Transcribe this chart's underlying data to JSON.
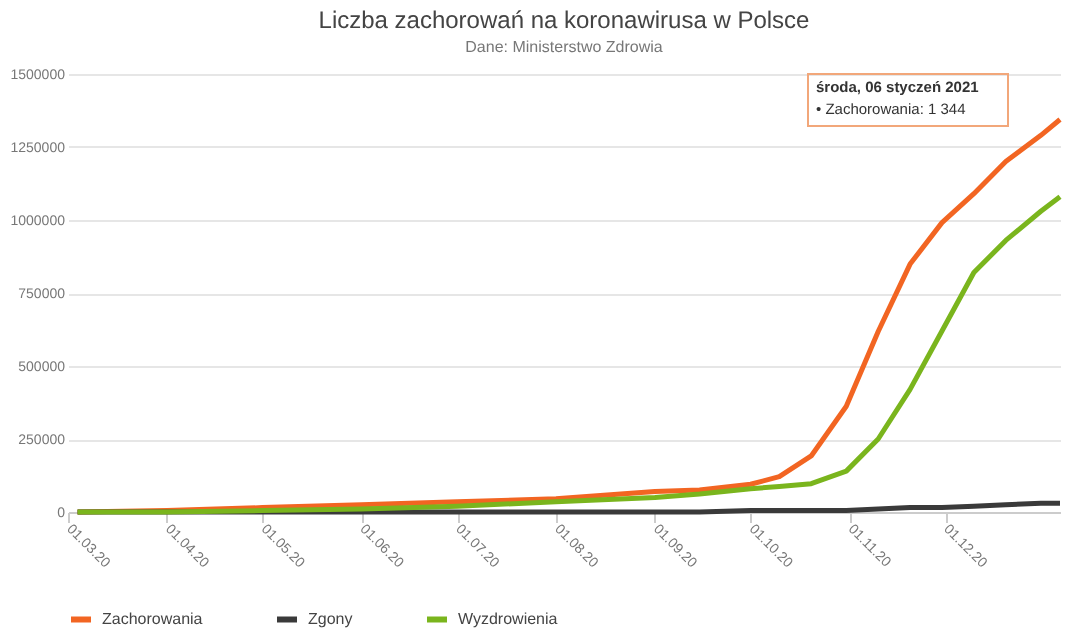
{
  "chart_data": {
    "type": "line",
    "title": "Liczba zachorowań na koronawirusa w Polsce",
    "subtitle": "Dane: Ministerstwo Zdrowia",
    "annotations": [
      "środa, 06 styczeń 2021",
      "• Zachorowania: 1 344"
    ],
    "x": [
      "2020-03-04",
      "2020-04-01",
      "2020-05-01",
      "2020-06-01",
      "2020-07-01",
      "2020-08-01",
      "2020-09-01",
      "2020-09-15",
      "2020-10-01",
      "2020-10-10",
      "2020-10-20",
      "2020-10-31",
      "2020-11-10",
      "2020-11-20",
      "2020-11-30",
      "2020-12-10",
      "2020-12-20",
      "2020-12-31",
      "2021-01-06"
    ],
    "series": [
      {
        "name": "Zachorowania",
        "color": "#f26522",
        "values": [
          0,
          5000,
          15000,
          25000,
          35000,
          45000,
          70000,
          75000,
          95000,
          121000,
          192000,
          362000,
          618000,
          849000,
          991000,
          1090000,
          1200000,
          1290000,
          1344000
        ]
      },
      {
        "name": "Zgony",
        "color": "#3a3a3a",
        "values": [
          0,
          0,
          0,
          0,
          0,
          0,
          0,
          0,
          5000,
          5000,
          5000,
          5000,
          10000,
          15000,
          15000,
          20000,
          25000,
          30000,
          30000
        ]
      },
      {
        "name": "Wyzdrowienia",
        "color": "#7ab51d",
        "values": [
          0,
          0,
          5000,
          10000,
          20000,
          35000,
          50000,
          62000,
          80000,
          87000,
          97000,
          140000,
          250000,
          420000,
          620000,
          820000,
          930000,
          1030000,
          1080000
        ]
      }
    ],
    "xlim": [
      "2020-03-01",
      "2021-01-06"
    ],
    "xticks": [
      {
        "value": "2020-03-01",
        "label": "01.03.20"
      },
      {
        "value": "2020-04-01",
        "label": "01.04.20"
      },
      {
        "value": "2020-05-01",
        "label": "01.05.20"
      },
      {
        "value": "2020-06-01",
        "label": "01.06.20"
      },
      {
        "value": "2020-07-01",
        "label": "01.07.20"
      },
      {
        "value": "2020-08-01",
        "label": "01.08.20"
      },
      {
        "value": "2020-09-01",
        "label": "01.09.20"
      },
      {
        "value": "2020-10-01",
        "label": "01.10.20"
      },
      {
        "value": "2020-11-01",
        "label": "01.11.20"
      },
      {
        "value": "2020-12-01",
        "label": "01.12.20"
      }
    ],
    "ylim": [
      0,
      1500000
    ],
    "yticks": [
      0,
      250000,
      500000,
      750000,
      1000000,
      1250000,
      1500000
    ],
    "grid": "y",
    "legend": "bottom",
    "marker": "none",
    "line_style": "solid"
  }
}
